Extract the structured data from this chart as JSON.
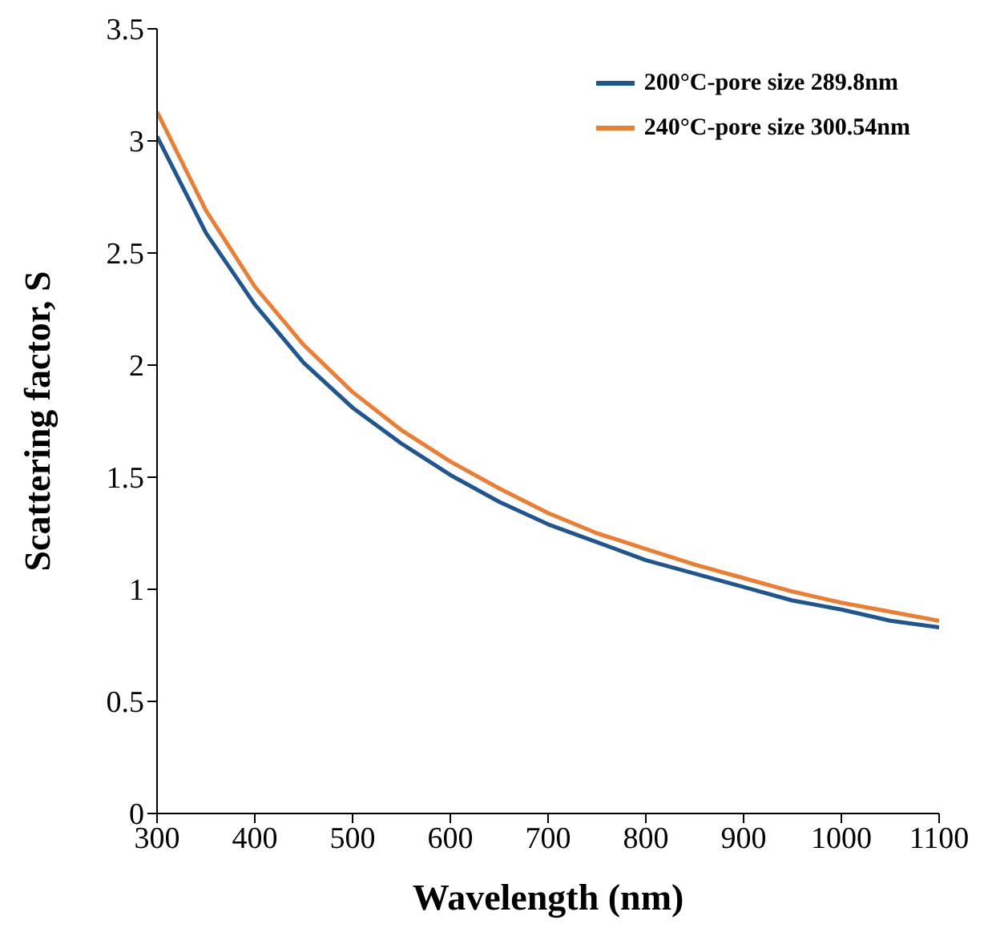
{
  "chart_data": {
    "type": "line",
    "xlabel": "Wavelength (nm)",
    "ylabel": "Scattering factor, S",
    "x": [
      300,
      350,
      400,
      450,
      500,
      550,
      600,
      650,
      700,
      750,
      800,
      850,
      900,
      950,
      1000,
      1050,
      1100
    ],
    "series": [
      {
        "name": "200°C-pore size 289.8nm",
        "color": "#1f5591",
        "values": [
          3.02,
          2.59,
          2.27,
          2.01,
          1.81,
          1.65,
          1.51,
          1.39,
          1.29,
          1.21,
          1.13,
          1.07,
          1.01,
          0.95,
          0.91,
          0.86,
          0.83
        ]
      },
      {
        "name": "240°C-pore size 300.54nm",
        "color": "#ed7d31",
        "values": [
          3.13,
          2.69,
          2.35,
          2.09,
          1.88,
          1.71,
          1.57,
          1.45,
          1.34,
          1.25,
          1.18,
          1.11,
          1.05,
          0.99,
          0.94,
          0.9,
          0.86
        ]
      }
    ],
    "xlim": [
      300,
      1100
    ],
    "xticks": [
      300,
      400,
      500,
      600,
      700,
      800,
      900,
      1000,
      1100
    ],
    "ylim": [
      0,
      3.5
    ],
    "yticks": [
      0,
      0.5,
      1,
      1.5,
      2,
      2.5,
      3,
      3.5
    ],
    "grid": false,
    "legend": "top right",
    "marker": "none",
    "line_style": "solid"
  }
}
